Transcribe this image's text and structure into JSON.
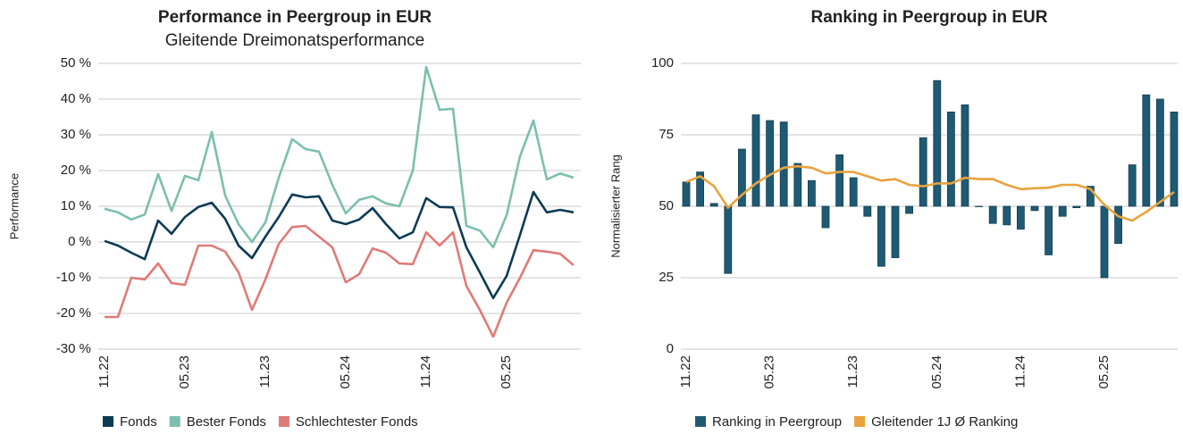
{
  "chart_data": [
    {
      "type": "line",
      "title": "Performance in Peergroup in EUR",
      "subtitle": "Gleitende Dreimonatsperformance",
      "y_label": "Performance",
      "categories": [
        "11.22",
        null,
        null,
        null,
        null,
        null,
        "05.23",
        null,
        null,
        null,
        null,
        null,
        "11.23",
        null,
        null,
        null,
        null,
        null,
        "05.24",
        null,
        null,
        null,
        null,
        null,
        "11.24",
        null,
        null,
        null,
        null,
        null,
        "05.25",
        null,
        null,
        null,
        null,
        null
      ],
      "ylim": [
        -30,
        50
      ],
      "yticks": [
        {
          "value": -30,
          "label": "-30 %"
        },
        {
          "value": -20,
          "label": "-20 %"
        },
        {
          "value": -10,
          "label": "-10 %"
        },
        {
          "value": 0,
          "label": "0 %"
        },
        {
          "value": 10,
          "label": "10 %"
        },
        {
          "value": 20,
          "label": "20 %"
        },
        {
          "value": 30,
          "label": "30 %"
        },
        {
          "value": 40,
          "label": "40 %"
        },
        {
          "value": 50,
          "label": "50 %"
        }
      ],
      "grid": true,
      "series": [
        {
          "name": "Fonds",
          "color": "#0d3b54",
          "values": [
            0.3,
            -1,
            -3,
            -4.8,
            6,
            2.3,
            7,
            9.8,
            11,
            6.5,
            -1,
            -4.5,
            1.5,
            7,
            13.3,
            12.5,
            12.8,
            6,
            5,
            6.3,
            9.5,
            5,
            1,
            2.7,
            12.3,
            9.8,
            9.7,
            -1.5,
            -8.5,
            -15.7,
            -9.5,
            2,
            14,
            8.3,
            9,
            8.3
          ]
        },
        {
          "name": "Bester Fonds",
          "color": "#7cbfae",
          "values": [
            9.3,
            8.3,
            6.3,
            7.7,
            19,
            8.7,
            18.5,
            17.3,
            30.8,
            13,
            5,
            0,
            5.5,
            18,
            28.8,
            26,
            25.3,
            16,
            8,
            11.8,
            12.8,
            10.8,
            10,
            20,
            49,
            37,
            37.3,
            4.5,
            3.2,
            -1.5,
            7.5,
            24,
            34,
            17.5,
            19.2,
            18
          ]
        },
        {
          "name": "Schlechtester Fonds",
          "color": "#df7b78",
          "values": [
            -21,
            -21,
            -10,
            -10.5,
            -6,
            -11.5,
            -12,
            -1,
            -1,
            -2.7,
            -8.5,
            -19,
            -10.5,
            -0.5,
            4.2,
            4.5,
            1.5,
            -1.5,
            -11.3,
            -9,
            -1.8,
            -3,
            -6,
            -6.2,
            2.7,
            -1,
            2.7,
            -12.3,
            -19,
            -26.5,
            -17,
            -10,
            -2.3,
            -2.7,
            -3.3,
            -6.5
          ]
        }
      ]
    },
    {
      "type": "bar",
      "title": "Ranking in Peergroup in EUR",
      "y_label": "Normalisierter Rang",
      "categories": [
        "11.22",
        null,
        null,
        null,
        null,
        null,
        "05.23",
        null,
        null,
        null,
        null,
        null,
        "11.23",
        null,
        null,
        null,
        null,
        null,
        "05.24",
        null,
        null,
        null,
        null,
        null,
        "11.24",
        null,
        null,
        null,
        null,
        null,
        "05.25",
        null,
        null,
        null,
        null,
        null
      ],
      "ylim": [
        0,
        100
      ],
      "yticks": [
        0,
        25,
        50,
        75,
        100
      ],
      "grid": true,
      "bar_baseline": 50,
      "series": [
        {
          "name": "Ranking in Peergroup",
          "type": "bar",
          "color": "#1f5a74",
          "values": [
            58.5,
            62,
            51,
            26.5,
            70,
            82,
            80,
            79.5,
            65,
            59,
            42.5,
            68,
            60,
            46.5,
            29,
            32,
            47.5,
            74,
            94,
            83,
            85.5,
            50,
            44,
            43.5,
            42,
            48.5,
            33,
            46.5,
            49.5,
            57,
            25,
            37,
            64.5,
            89,
            87.5,
            83
          ]
        },
        {
          "name": "Gleitender 1J Ø Ranking",
          "type": "line",
          "color": "#e8a33d",
          "values": [
            58.5,
            60.5,
            57,
            49.5,
            54,
            58,
            61,
            63.5,
            64,
            63.5,
            61.5,
            62,
            62,
            60.5,
            59,
            59.5,
            57.5,
            57,
            58,
            58,
            60,
            59.5,
            59.5,
            57.5,
            56,
            56.3,
            56.5,
            57.5,
            57.5,
            56,
            50.5,
            46.5,
            45,
            48,
            51.5,
            55
          ]
        }
      ]
    }
  ]
}
